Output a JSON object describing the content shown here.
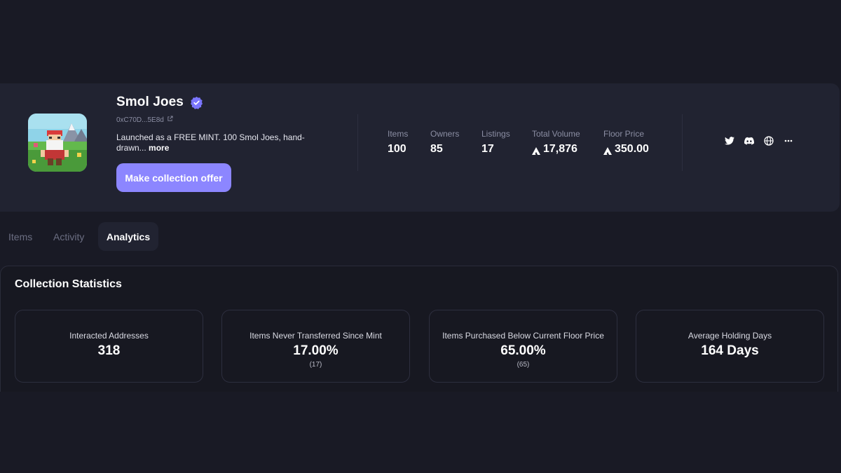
{
  "collection": {
    "name": "Smol Joes",
    "address": "0xC70D...5E8d",
    "description": "Launched as a FREE MINT. 100 Smol Joes, hand-drawn...",
    "more_label": "more",
    "offer_button": "Make collection offer"
  },
  "stats": [
    {
      "label": "Items",
      "value": "100"
    },
    {
      "label": "Owners",
      "value": "85"
    },
    {
      "label": "Listings",
      "value": "17"
    },
    {
      "label": "Total Volume",
      "value": "17,876",
      "icon": "avax-icon"
    },
    {
      "label": "Floor Price",
      "value": "350.00",
      "icon": "avax-icon"
    }
  ],
  "socials": [
    "twitter-icon",
    "discord-icon",
    "globe-icon",
    "more-icon"
  ],
  "tabs": [
    {
      "label": "Items"
    },
    {
      "label": "Activity"
    },
    {
      "label": "Analytics",
      "active": true
    }
  ],
  "analytics": {
    "title": "Collection Statistics",
    "cards": [
      {
        "label": "Interacted Addresses",
        "value": "318",
        "sub": ""
      },
      {
        "label": "Items Never Transferred Since Mint",
        "value": "17.00%",
        "sub": "(17)"
      },
      {
        "label": "Items Purchased Below Current Floor Price",
        "value": "65.00%",
        "sub": "(65)"
      },
      {
        "label": "Average Holding Days",
        "value": "164 Days",
        "sub": ""
      }
    ]
  },
  "colors": {
    "background": "#191a25",
    "card": "#212331",
    "accent": "#8c86ff",
    "verified": "#7b76ff"
  }
}
